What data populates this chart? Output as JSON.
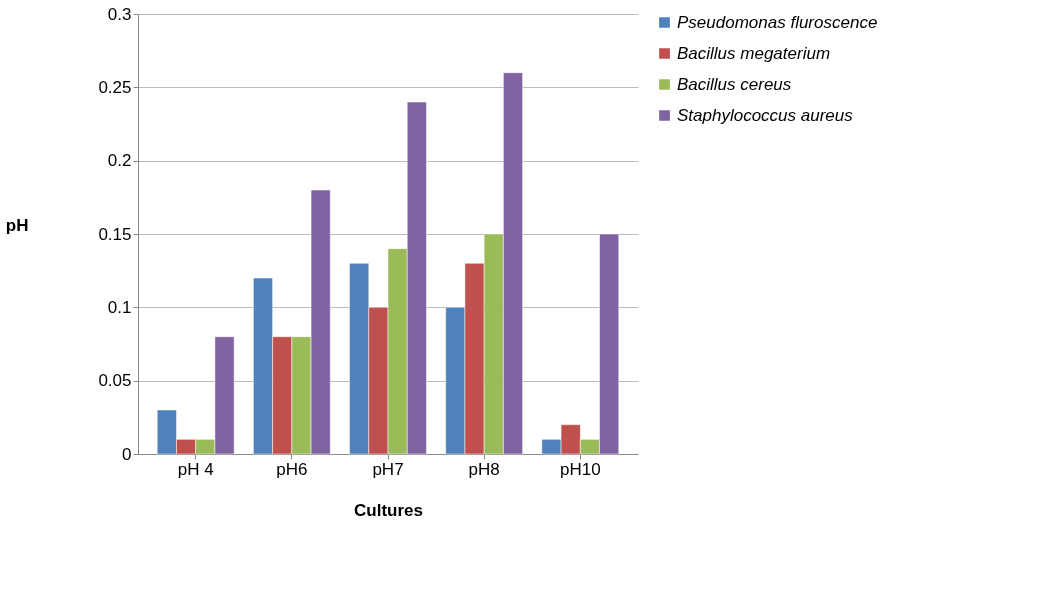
{
  "chart_data": {
    "type": "bar",
    "xlabel": "Cultures",
    "ylabel": "pH",
    "categories": [
      "pH 4",
      "pH6",
      "pH7",
      "pH8",
      "pH10"
    ],
    "series": [
      {
        "name": "Pseudomonas fluroscence",
        "color": "#4f81bd",
        "values": [
          0.03,
          0.12,
          0.13,
          0.1,
          0.01
        ]
      },
      {
        "name": "Bacillus megaterium",
        "color": "#c0504d",
        "values": [
          0.01,
          0.08,
          0.1,
          0.13,
          0.02
        ]
      },
      {
        "name": "Bacillus cereus",
        "color": "#9bbb59",
        "values": [
          0.01,
          0.08,
          0.14,
          0.15,
          0.01
        ]
      },
      {
        "name": "Staphylococcus aureus",
        "color": "#8064a2",
        "values": [
          0.08,
          0.18,
          0.24,
          0.26,
          0.15
        ]
      }
    ],
    "ylim": [
      0,
      0.3
    ],
    "yticks": [
      0,
      0.05,
      0.1,
      0.15,
      0.2,
      0.25,
      0.3
    ],
    "grid": "y",
    "legend": "right"
  }
}
